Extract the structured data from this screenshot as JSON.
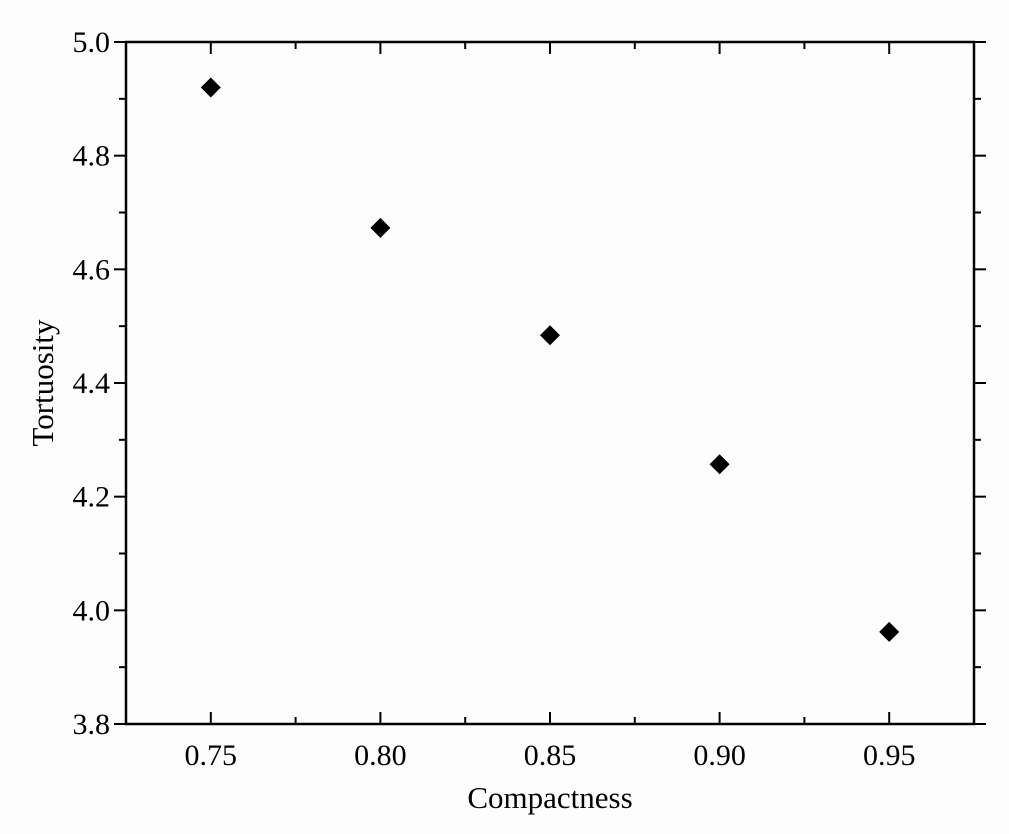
{
  "chart_data": {
    "type": "scatter",
    "title": "",
    "xlabel": "Compactness",
    "ylabel": "Tortuosity",
    "xlim": [
      0.725,
      0.975
    ],
    "ylim": [
      3.8,
      5.0
    ],
    "x_ticks": [
      0.75,
      0.8,
      0.85,
      0.9,
      0.95
    ],
    "x_tick_labels": [
      "0.75",
      "0.80",
      "0.85",
      "0.90",
      "0.95"
    ],
    "y_ticks": [
      3.8,
      4.0,
      4.2,
      4.4,
      4.6,
      4.8,
      5.0
    ],
    "y_tick_labels": [
      "3.8",
      "4.0",
      "4.2",
      "4.4",
      "4.6",
      "4.8",
      "5.0"
    ],
    "marker": "diamond",
    "marker_color": "#000000",
    "grid": false,
    "series": [
      {
        "x": [
          0.75,
          0.8,
          0.85,
          0.9,
          0.95
        ],
        "y": [
          4.92,
          4.673,
          4.484,
          4.257,
          3.962
        ]
      }
    ]
  }
}
